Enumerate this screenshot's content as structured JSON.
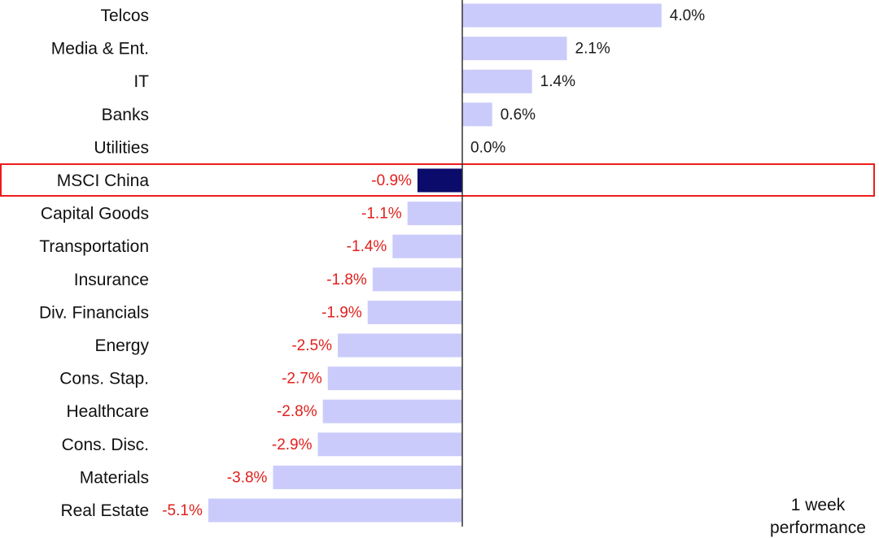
{
  "chart_data": {
    "type": "bar",
    "orientation": "horizontal",
    "categories": [
      "Telcos",
      "Media & Ent.",
      "IT",
      "Banks",
      "Utilities",
      "MSCI China",
      "Capital Goods",
      "Transportation",
      "Insurance",
      "Div. Financials",
      "Energy",
      "Cons. Stap.",
      "Healthcare",
      "Cons. Disc.",
      "Materials",
      "Real Estate"
    ],
    "values": [
      4.0,
      2.1,
      1.4,
      0.6,
      0.0,
      -0.9,
      -1.1,
      -1.4,
      -1.8,
      -1.9,
      -2.5,
      -2.7,
      -2.8,
      -2.9,
      -3.8,
      -5.1
    ],
    "value_labels": [
      "4.0%",
      "2.1%",
      "1.4%",
      "0.6%",
      "0.0%",
      "-0.9%",
      "-1.1%",
      "-1.4%",
      "-1.8%",
      "-1.9%",
      "-2.5%",
      "-2.7%",
      "-2.8%",
      "-2.9%",
      "-3.8%",
      "-5.1%"
    ],
    "highlight_category": "MSCI China",
    "annotation": [
      "1 week",
      "performance"
    ],
    "colors": {
      "bar": "#cbcbfb",
      "highlight_bar": "#0b0b6b",
      "positive_label": "#1a1a1a",
      "negative_label": "#e0201c",
      "highlight_box": "#ee1c1c",
      "axis": "#333333"
    },
    "title": "",
    "xlabel": "",
    "ylabel": "",
    "xlim": [
      -5.2,
      5.2
    ],
    "grid": false,
    "legend": "none"
  }
}
